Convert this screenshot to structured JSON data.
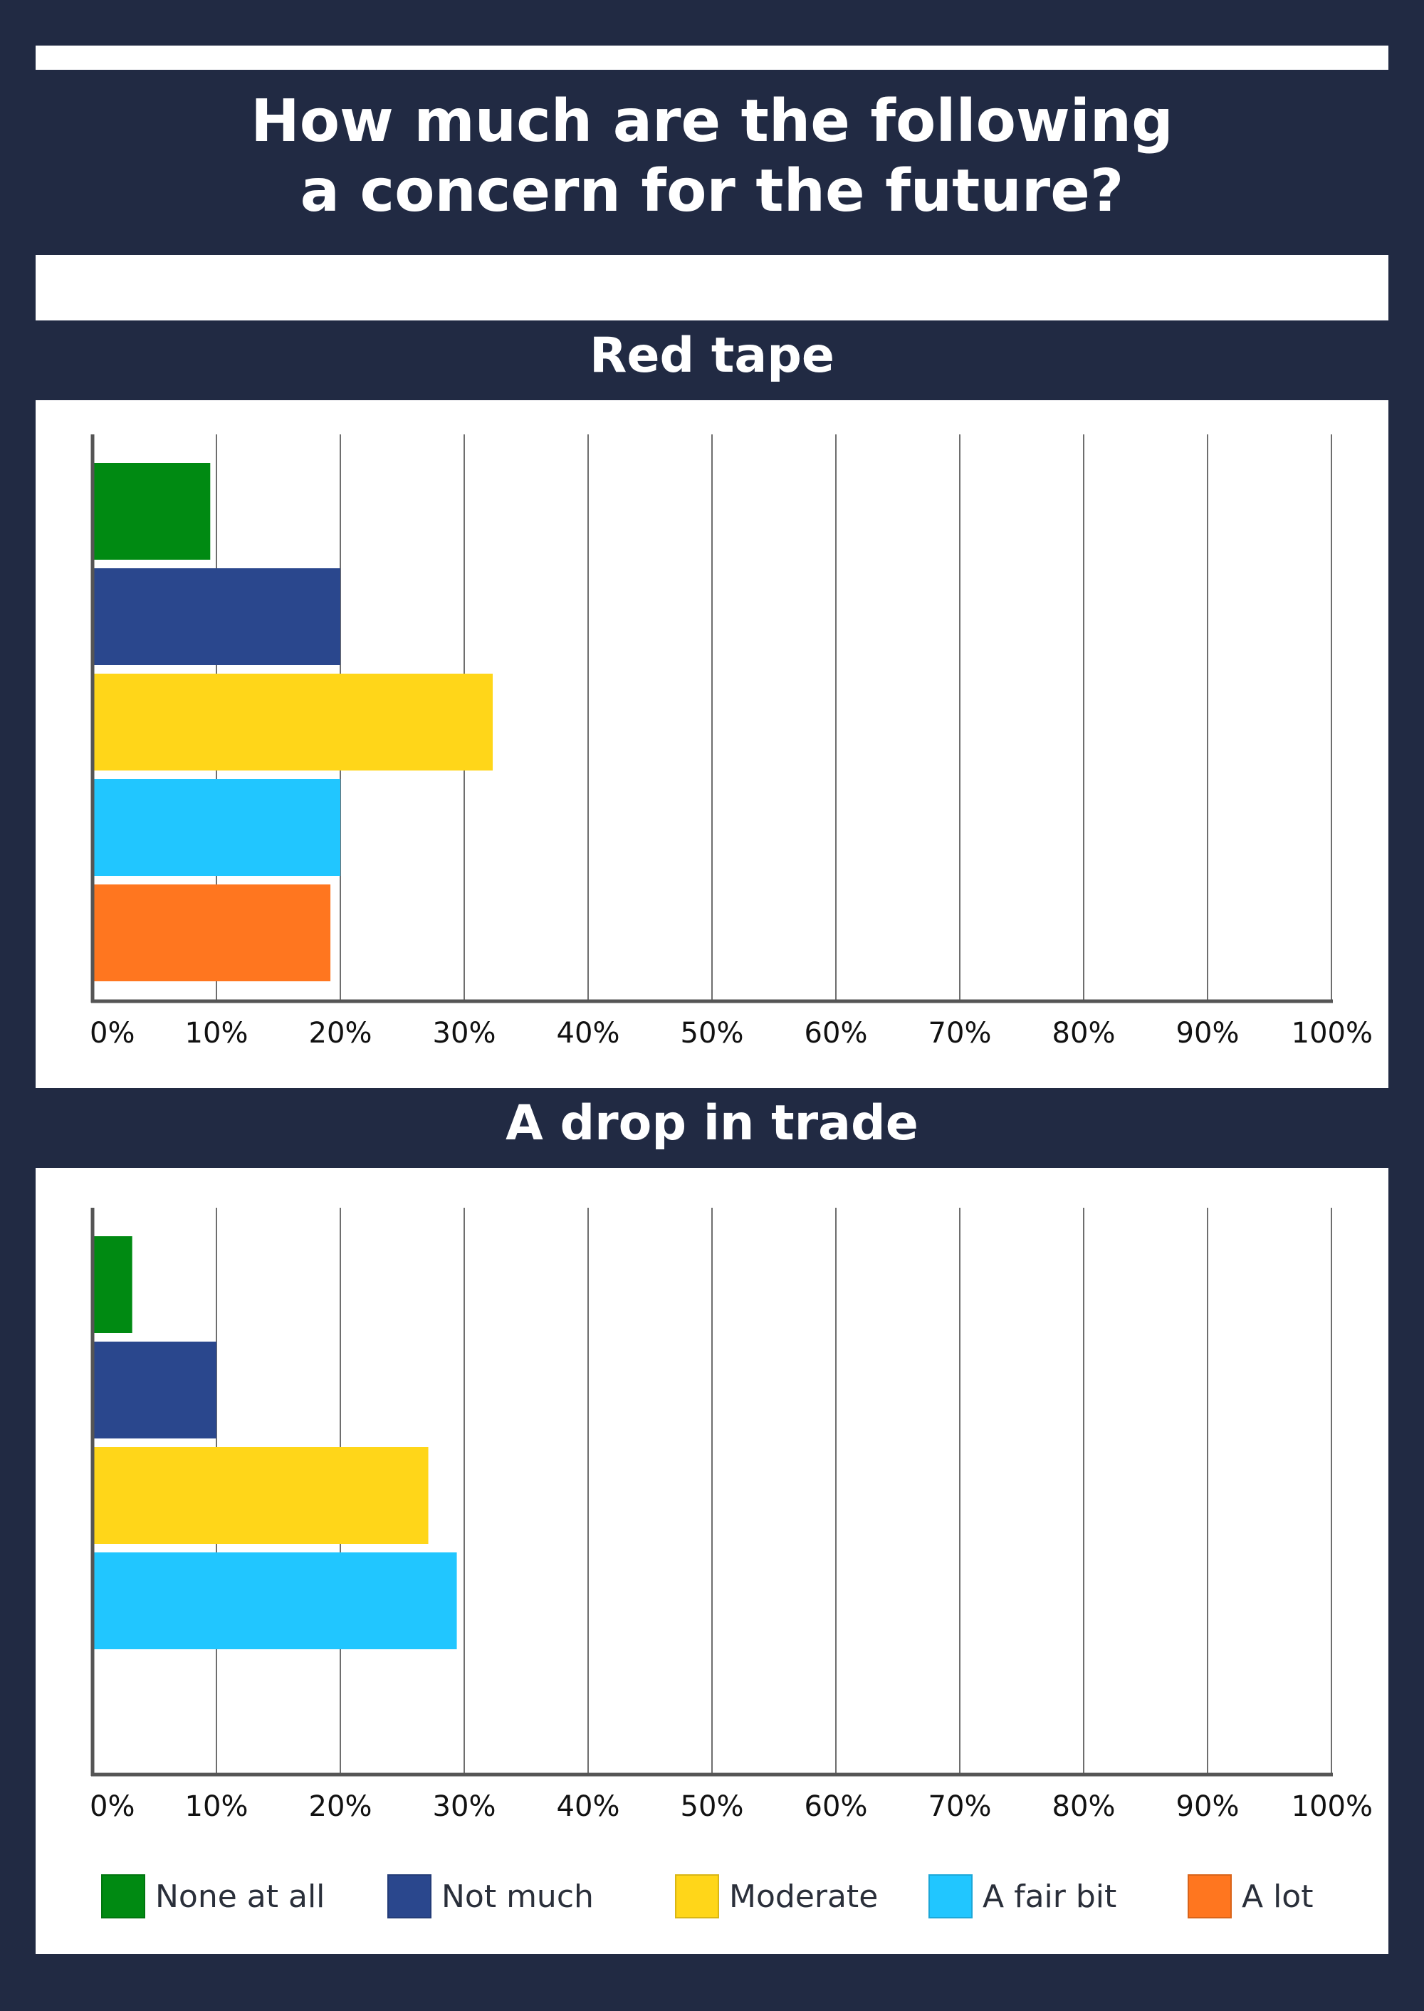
{
  "title_lines": [
    "How much are the following",
    "a concern for the future?"
  ],
  "colors": {
    "background": "#212a43",
    "None at all": "#008a12",
    "Not much": "#2a478d",
    "Moderate": "#ffd619",
    "A fair bit": "#21c6ff",
    "A lot": "#ff761f"
  },
  "legend": [
    "None at all",
    "Not much",
    "Moderate",
    "A fair bit",
    "A lot"
  ],
  "chart_data": [
    {
      "type": "bar",
      "orientation": "horizontal",
      "title": "Red tape",
      "categories": [
        "None at all",
        "Not much",
        "Moderate",
        "A fair bit",
        "A lot"
      ],
      "values": [
        9.5,
        20,
        32.3,
        20,
        19.2
      ],
      "xlim": [
        0,
        100
      ],
      "xticks": [
        "0%",
        "10%",
        "20%",
        "30%",
        "40%",
        "50%",
        "60%",
        "70%",
        "80%",
        "90%",
        "100%"
      ],
      "grid": "vertical",
      "legend": "bottom"
    },
    {
      "type": "bar",
      "orientation": "horizontal",
      "title": "A drop in trade",
      "categories": [
        "None at all",
        "Not much",
        "Moderate",
        "A fair bit"
      ],
      "values": [
        3.2,
        10,
        27.1,
        29.4
      ],
      "xlim": [
        0,
        100
      ],
      "xticks": [
        "0%",
        "10%",
        "20%",
        "30%",
        "40%",
        "50%",
        "60%",
        "70%",
        "80%",
        "90%",
        "100%"
      ],
      "grid": "vertical",
      "legend": "bottom"
    }
  ]
}
